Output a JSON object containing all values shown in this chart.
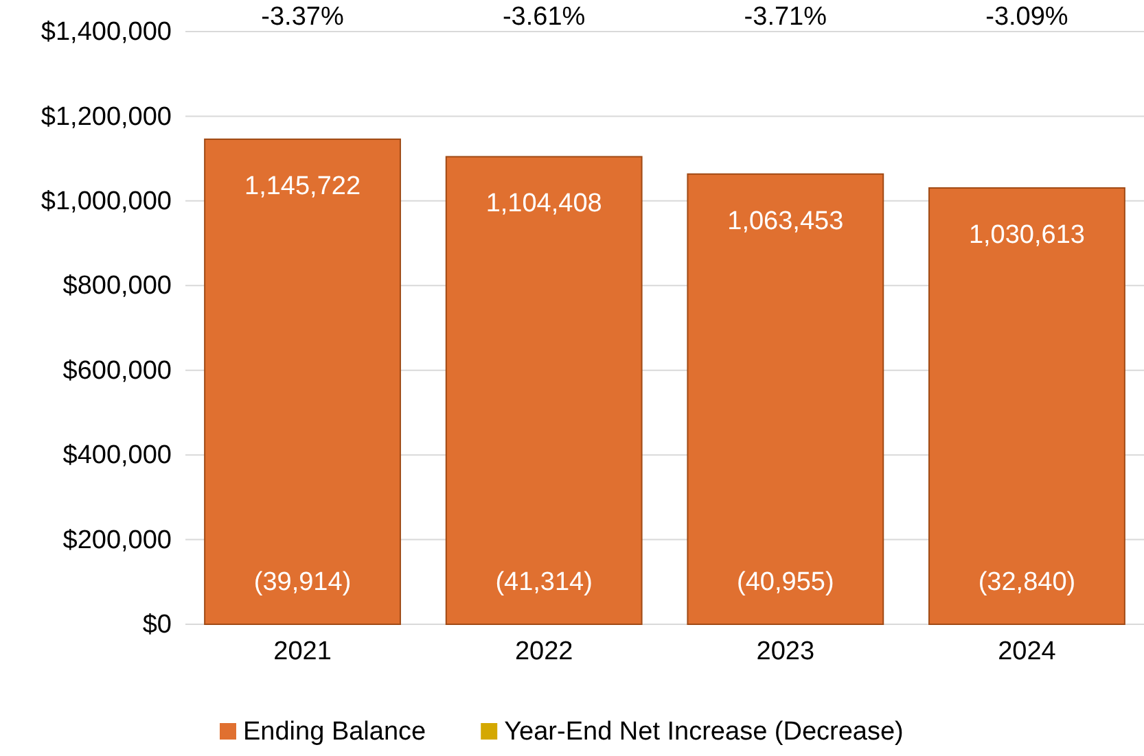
{
  "chart_data": {
    "type": "bar",
    "categories": [
      "2021",
      "2022",
      "2023",
      "2024"
    ],
    "series": [
      {
        "name": "Ending Balance",
        "color": "#e07030",
        "values": [
          1145722,
          1104408,
          1063453,
          1030613
        ],
        "value_labels": [
          "1,145,722",
          "1,104,408",
          "1,063,453",
          "1,030,613"
        ]
      },
      {
        "name": "Year-End Net Increase (Decrease)",
        "color": "#d4a800",
        "values": [
          null,
          null,
          null,
          null
        ]
      }
    ],
    "ylim": [
      0,
      1400000
    ],
    "yticks": [
      {
        "value": 0,
        "label": "$0"
      },
      {
        "value": 200000,
        "label": "$200,000"
      },
      {
        "value": 400000,
        "label": "$400,000"
      },
      {
        "value": 600000,
        "label": "$600,000"
      },
      {
        "value": 800000,
        "label": "$800,000"
      },
      {
        "value": 1000000,
        "label": "$1,000,000"
      },
      {
        "value": 1200000,
        "label": "$1,200,000"
      },
      {
        "value": 1400000,
        "label": "$1,400,000"
      }
    ],
    "grid": "y",
    "legend": "bottom",
    "annotations": [
      "-3.37%",
      "-3.61%",
      "-3.71%",
      "-3.09%",
      "(39,914)",
      "(41,314)",
      "(40,955)",
      "(32,840)"
    ]
  }
}
